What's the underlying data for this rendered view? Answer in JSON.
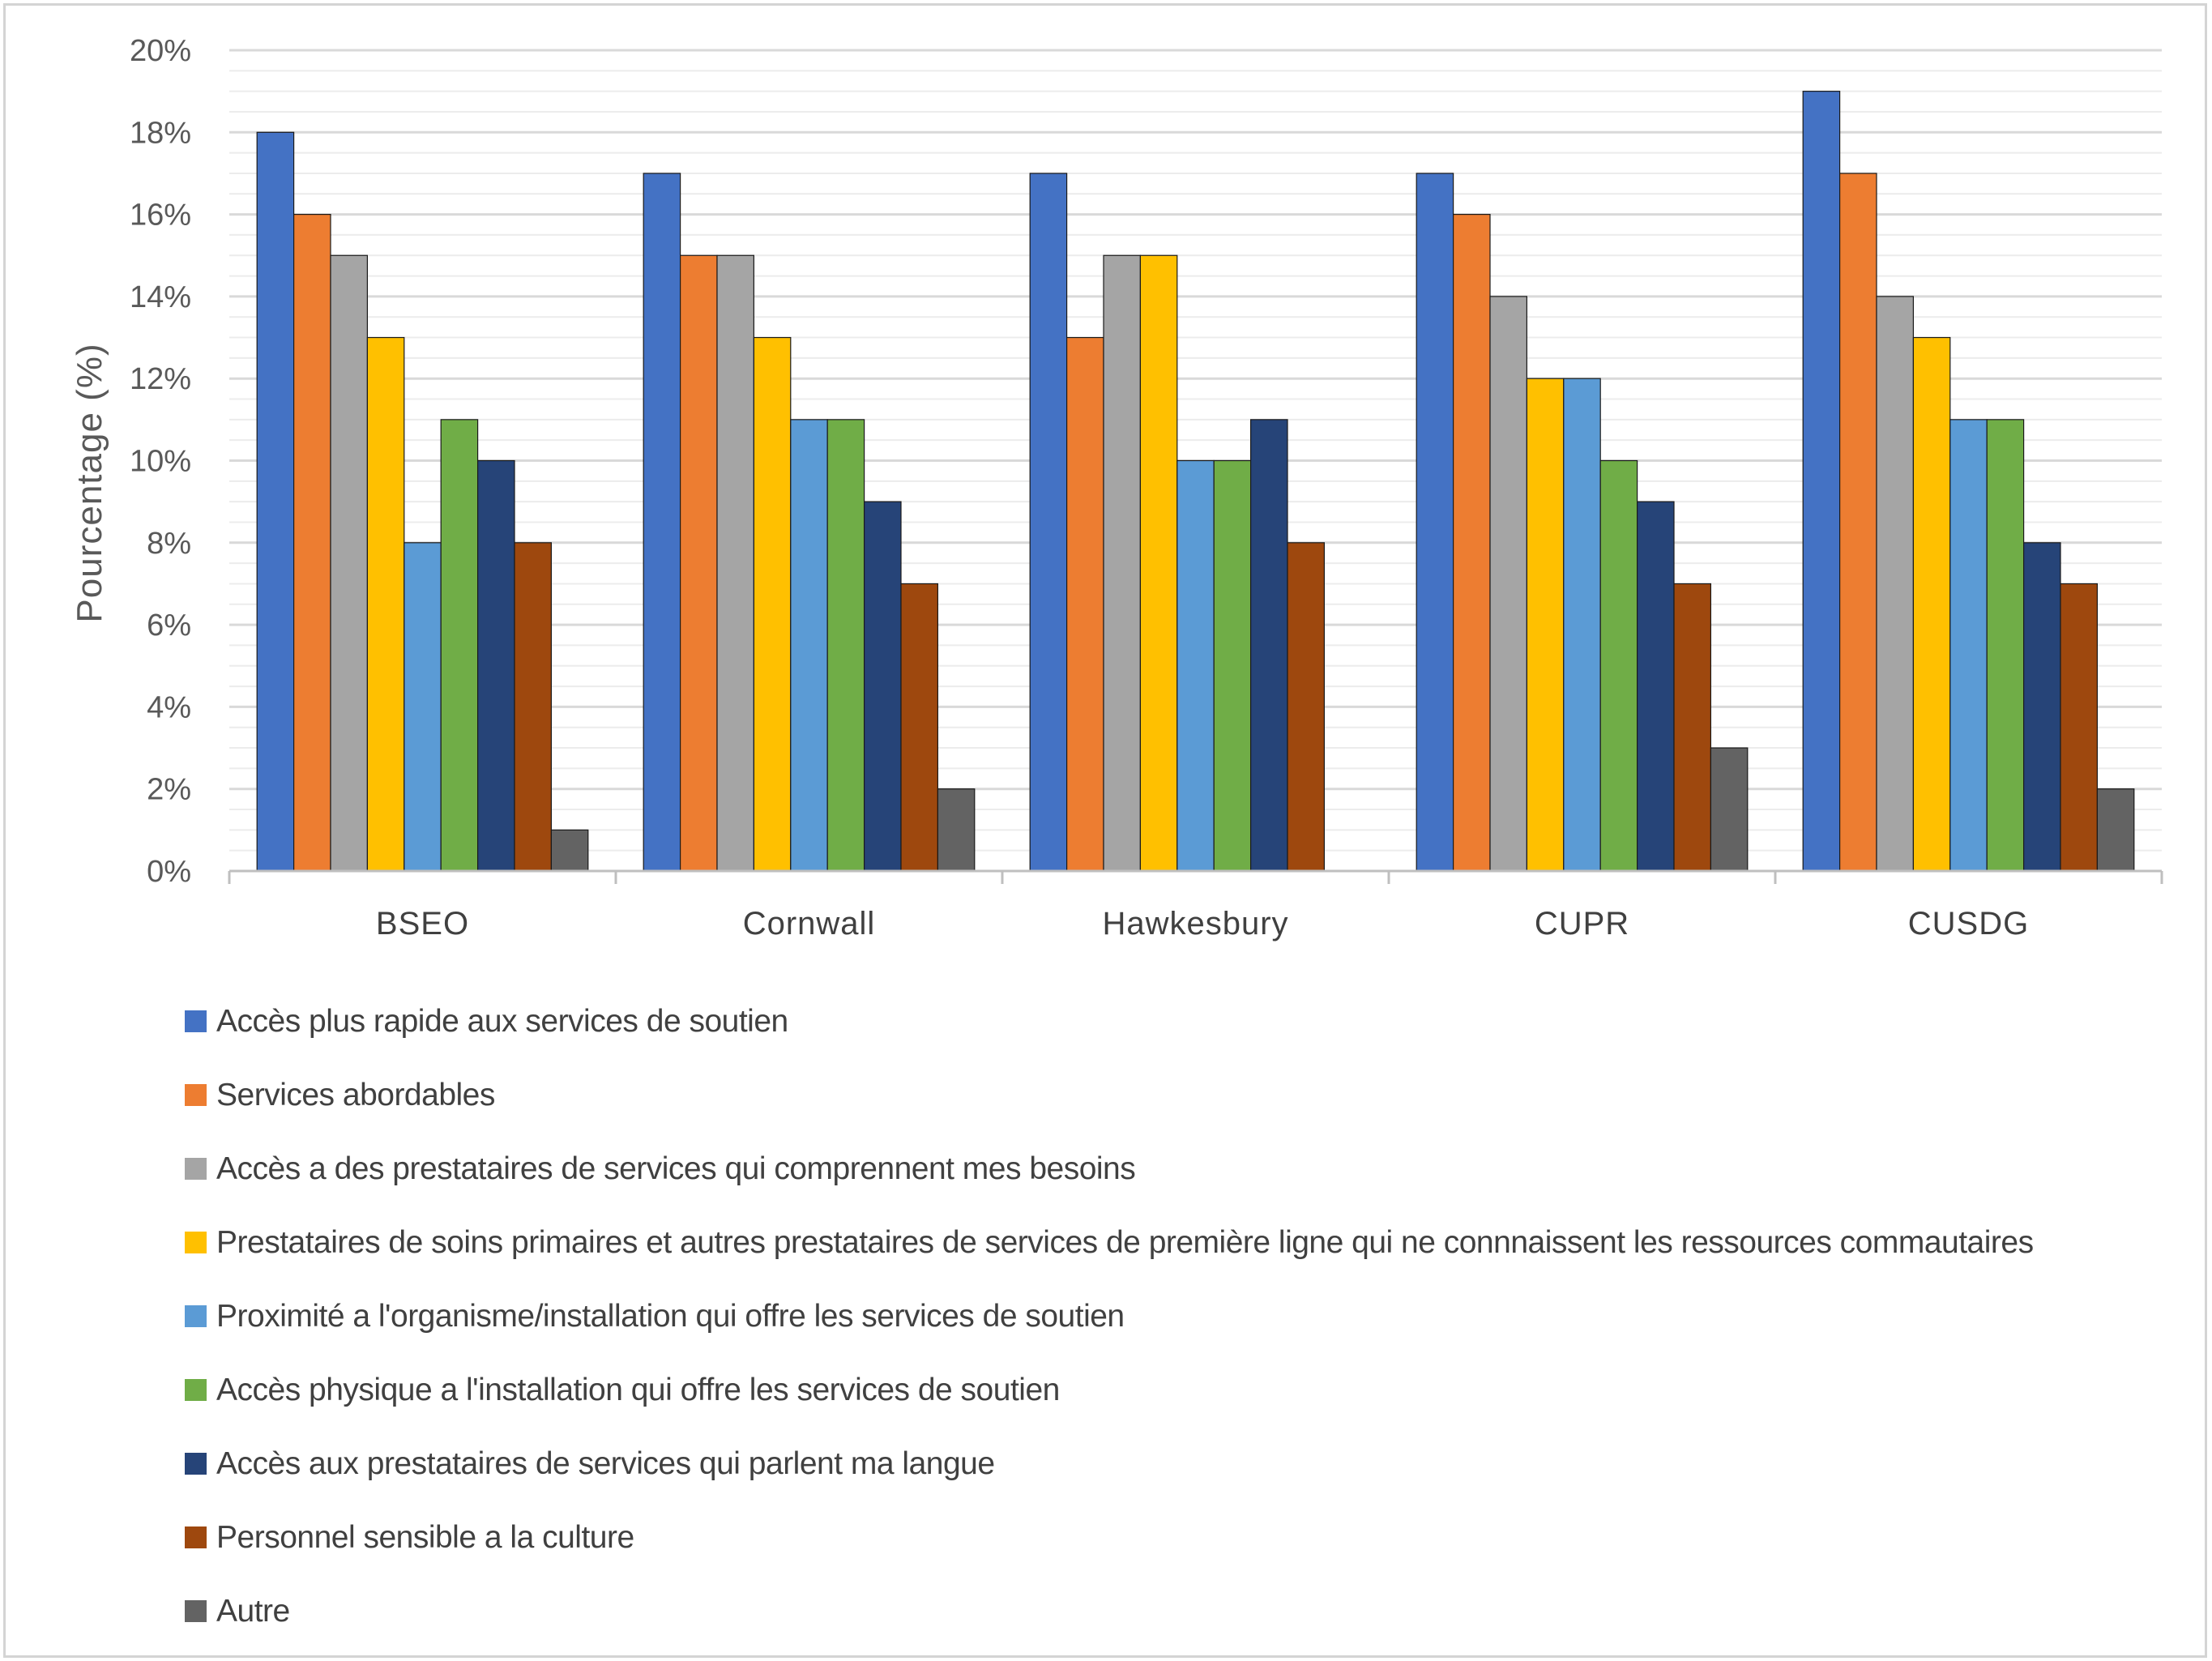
{
  "chart_data": {
    "type": "bar",
    "title": "",
    "ylabel": "Pourcentage (%)",
    "xlabel": "",
    "ylim": [
      0,
      20
    ],
    "y_ticks": [
      "0%",
      "2%",
      "4%",
      "6%",
      "8%",
      "10%",
      "12%",
      "14%",
      "16%",
      "18%",
      "20%"
    ],
    "y_tick_values": [
      0,
      2,
      4,
      6,
      8,
      10,
      12,
      14,
      16,
      18,
      20
    ],
    "grid": true,
    "legend_position": "bottom",
    "categories": [
      "BSEO",
      "Cornwall",
      "Hawkesbury",
      "CUPR",
      "CUSDG"
    ],
    "series": [
      {
        "name": "Accès plus rapide aux services de soutien",
        "color": "#4472C4",
        "values": [
          18,
          17,
          17,
          17,
          19
        ]
      },
      {
        "name": "Services abordables",
        "color": "#ED7D31",
        "values": [
          16,
          15,
          13,
          16,
          17
        ]
      },
      {
        "name": "Accès a des prestataires de services qui comprennent mes besoins",
        "color": "#A5A5A5",
        "values": [
          15,
          15,
          15,
          14,
          14
        ]
      },
      {
        "name": "Prestataires de soins primaires et autres prestataires de services de première ligne qui ne connnaissent les ressources commautaires",
        "color": "#FFC000",
        "values": [
          13,
          13,
          15,
          12,
          13
        ]
      },
      {
        "name": "Proximité a l'organisme/installation qui offre les services de soutien",
        "color": "#5B9BD5",
        "values": [
          8,
          11,
          10,
          12,
          11
        ]
      },
      {
        "name": "Accès physique a l'installation qui offre les services de soutien",
        "color": "#70AD47",
        "values": [
          11,
          11,
          10,
          10,
          11
        ]
      },
      {
        "name": "Accès aux prestataires de services qui parlent ma langue",
        "color": "#264478",
        "values": [
          10,
          9,
          11,
          9,
          8
        ]
      },
      {
        "name": "Personnel sensible a la culture",
        "color": "#9E480E",
        "values": [
          8,
          7,
          8,
          7,
          7
        ]
      },
      {
        "name": "Autre",
        "color": "#636363",
        "values": [
          1,
          2,
          0,
          3,
          2
        ]
      }
    ]
  }
}
